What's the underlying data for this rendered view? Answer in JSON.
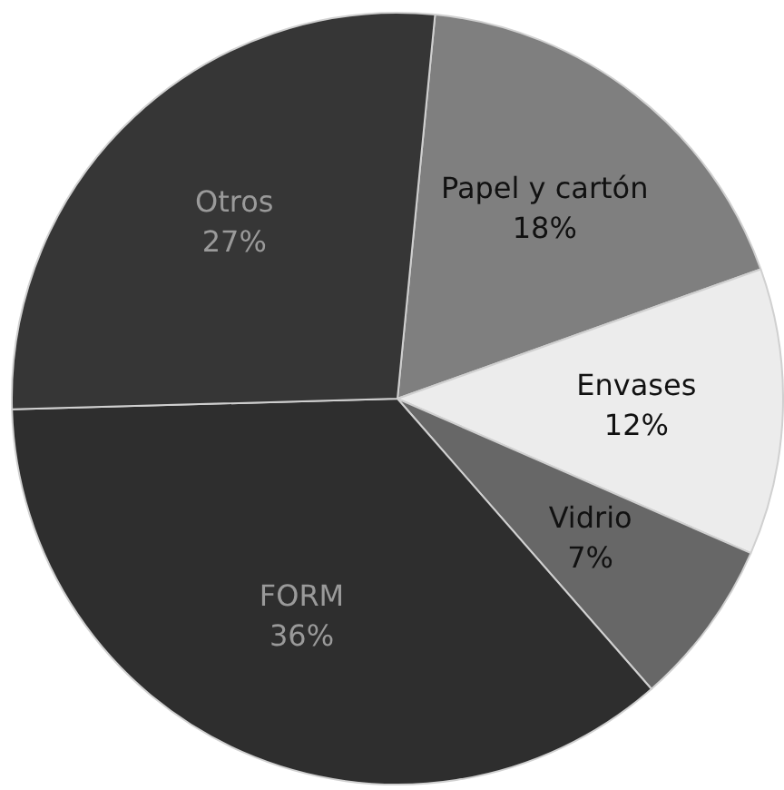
{
  "chart_data": {
    "type": "pie",
    "categories": [
      "Papel y cartón",
      "Envases",
      "Vidrio",
      "FORM",
      "Otros"
    ],
    "values": [
      18,
      12,
      7,
      36,
      27
    ],
    "colors": [
      "#7f7f7f",
      "#ececec",
      "#676767",
      "#2e2e2e",
      "#363636"
    ],
    "value_labels": [
      "18%",
      "12%",
      "7%",
      "36%",
      "27%"
    ],
    "legend": false
  }
}
